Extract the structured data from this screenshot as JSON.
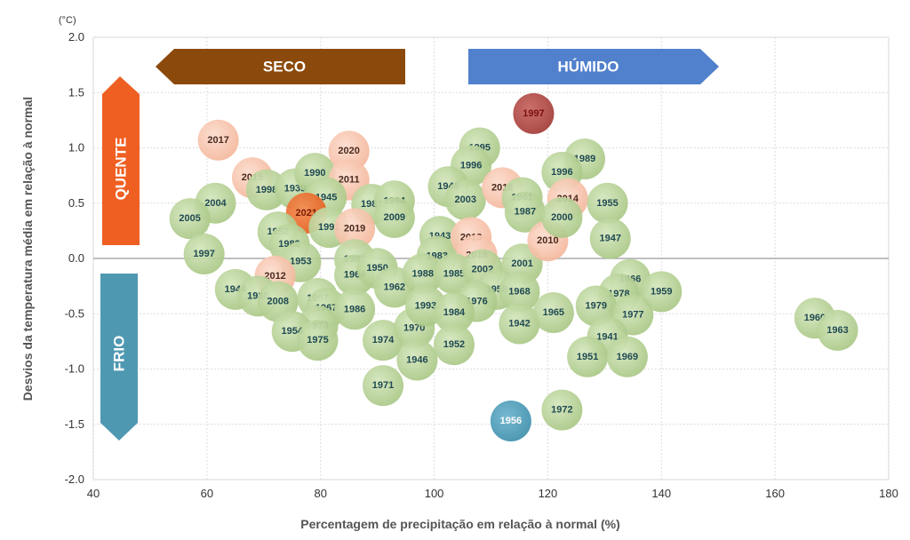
{
  "chart_data": {
    "type": "scatter",
    "title": "",
    "xlabel": "Percentagem de precipitação em relação à normal (%)",
    "ylabel": "Desvios da temperatura média em relação à normal",
    "yunit": "(°C)",
    "xlim": [
      40,
      180
    ],
    "ylim": [
      -2.0,
      2.0
    ],
    "x_ticks": [
      40,
      60,
      80,
      100,
      120,
      140,
      160,
      180
    ],
    "y_ticks": [
      "2.0",
      "1.5",
      "1.0",
      "0.5",
      "0.0",
      "-0.5",
      "-1.0",
      "-1.5",
      "-2.0"
    ],
    "grid": true,
    "colors": {
      "green": "#b5cf91",
      "pink": "#f7c2aa",
      "orange": "#ee6e2b",
      "red": "#b3443f",
      "blue": "#4b9cb8",
      "seco_arrow": "#8b4a0c",
      "humido_arrow": "#5180cc",
      "quente_arrow": "#ef5f22",
      "frio_arrow": "#4f98b2"
    },
    "quadrants": {
      "seco": "SECO",
      "humido": "HÚMIDO",
      "quente": "QUENTE",
      "frio": "FRIO"
    },
    "points": [
      {
        "year": "2017",
        "x": 62,
        "y": 1.07,
        "color": "pink"
      },
      {
        "year": "2015",
        "x": 68,
        "y": 0.73,
        "color": "pink"
      },
      {
        "year": "1998",
        "x": 70.5,
        "y": 0.62,
        "color": "green"
      },
      {
        "year": "2004",
        "x": 61.5,
        "y": 0.5,
        "color": "green"
      },
      {
        "year": "2005",
        "x": 57,
        "y": 0.36,
        "color": "green"
      },
      {
        "year": "1997",
        "x": 59.5,
        "y": 0.04,
        "color": "green"
      },
      {
        "year": "1939",
        "x": 75.5,
        "y": 0.63,
        "color": "green"
      },
      {
        "year": "1990",
        "x": 79,
        "y": 0.77,
        "color": "green"
      },
      {
        "year": "2020",
        "x": 85,
        "y": 0.97,
        "color": "pink"
      },
      {
        "year": "2011",
        "x": 85,
        "y": 0.71,
        "color": "pink"
      },
      {
        "year": "1945",
        "x": 81,
        "y": 0.55,
        "color": "green"
      },
      {
        "year": "2021",
        "x": 77.5,
        "y": 0.41,
        "color": "orange"
      },
      {
        "year": "1981",
        "x": 89,
        "y": 0.49,
        "color": "green"
      },
      {
        "year": "1994",
        "x": 93,
        "y": 0.52,
        "color": "green"
      },
      {
        "year": "2009",
        "x": 93,
        "y": 0.37,
        "color": "green"
      },
      {
        "year": "1992",
        "x": 72.5,
        "y": 0.24,
        "color": "green"
      },
      {
        "year": "1982",
        "x": 74.5,
        "y": 0.13,
        "color": "green"
      },
      {
        "year": "1991",
        "x": 81.5,
        "y": 0.28,
        "color": "green"
      },
      {
        "year": "2019",
        "x": 86,
        "y": 0.27,
        "color": "pink"
      },
      {
        "year": "1953",
        "x": 76.5,
        "y": -0.03,
        "color": "green"
      },
      {
        "year": "2012",
        "x": 72,
        "y": -0.16,
        "color": "pink"
      },
      {
        "year": "1999",
        "x": 86,
        "y": -0.01,
        "color": "green"
      },
      {
        "year": "1964",
        "x": 86,
        "y": -0.15,
        "color": "green"
      },
      {
        "year": "1950",
        "x": 90,
        "y": -0.09,
        "color": "green"
      },
      {
        "year": "1962",
        "x": 93,
        "y": -0.26,
        "color": "green"
      },
      {
        "year": "1944",
        "x": 65,
        "y": -0.28,
        "color": "green"
      },
      {
        "year": "1980",
        "x": 69,
        "y": -0.34,
        "color": "green"
      },
      {
        "year": "2008",
        "x": 72.5,
        "y": -0.39,
        "color": "green"
      },
      {
        "year": "1957",
        "x": 79.5,
        "y": -0.36,
        "color": "green"
      },
      {
        "year": "1967",
        "x": 81,
        "y": -0.45,
        "color": "green"
      },
      {
        "year": "1986",
        "x": 86,
        "y": -0.46,
        "color": "green"
      },
      {
        "year": "1973",
        "x": 79.5,
        "y": -0.61,
        "color": "green"
      },
      {
        "year": "1954",
        "x": 75,
        "y": -0.66,
        "color": "green"
      },
      {
        "year": "1975",
        "x": 79.5,
        "y": -0.74,
        "color": "green"
      },
      {
        "year": "1974",
        "x": 91,
        "y": -0.74,
        "color": "green"
      },
      {
        "year": "1970",
        "x": 96.5,
        "y": -0.63,
        "color": "green"
      },
      {
        "year": "1946",
        "x": 97,
        "y": -0.92,
        "color": "green"
      },
      {
        "year": "1971",
        "x": 91,
        "y": -1.15,
        "color": "green"
      },
      {
        "year": "1995",
        "x": 108,
        "y": 1.0,
        "color": "green"
      },
      {
        "year": "1996",
        "x": 106.5,
        "y": 0.84,
        "color": "green"
      },
      {
        "year": "1948",
        "x": 102.5,
        "y": 0.65,
        "color": "green"
      },
      {
        "year": "2003",
        "x": 105.5,
        "y": 0.53,
        "color": "green"
      },
      {
        "year": "2016",
        "x": 112,
        "y": 0.64,
        "color": "pink"
      },
      {
        "year": "1961",
        "x": 115.5,
        "y": 0.55,
        "color": "green"
      },
      {
        "year": "1987",
        "x": 116,
        "y": 0.42,
        "color": "green"
      },
      {
        "year": "1943",
        "x": 101,
        "y": 0.2,
        "color": "green"
      },
      {
        "year": "1983",
        "x": 100.5,
        "y": 0.02,
        "color": "green"
      },
      {
        "year": "2013",
        "x": 106.5,
        "y": 0.19,
        "color": "pink"
      },
      {
        "year": "2018",
        "x": 107.5,
        "y": 0.03,
        "color": "pink"
      },
      {
        "year": "1988",
        "x": 98,
        "y": -0.14,
        "color": "green"
      },
      {
        "year": "1985",
        "x": 103.5,
        "y": -0.14,
        "color": "green"
      },
      {
        "year": "2002",
        "x": 108.5,
        "y": -0.1,
        "color": "green"
      },
      {
        "year": "2001",
        "x": 115.5,
        "y": -0.05,
        "color": "green"
      },
      {
        "year": "2010",
        "x": 120,
        "y": 0.16,
        "color": "pink"
      },
      {
        "year": "1958",
        "x": 111,
        "y": -0.28,
        "color": "green"
      },
      {
        "year": "1968",
        "x": 115,
        "y": -0.3,
        "color": "green"
      },
      {
        "year": "1976",
        "x": 107.5,
        "y": -0.39,
        "color": "green"
      },
      {
        "year": "1993",
        "x": 98.5,
        "y": -0.43,
        "color": "green"
      },
      {
        "year": "1984",
        "x": 103.5,
        "y": -0.49,
        "color": "green"
      },
      {
        "year": "1952",
        "x": 103.5,
        "y": -0.78,
        "color": "green"
      },
      {
        "year": "1942",
        "x": 115,
        "y": -0.59,
        "color": "green"
      },
      {
        "year": "1965",
        "x": 121,
        "y": -0.49,
        "color": "green"
      },
      {
        "year": "1997",
        "x": 117.5,
        "y": 1.31,
        "color": "red"
      },
      {
        "year": "1989",
        "x": 126.5,
        "y": 0.9,
        "color": "green"
      },
      {
        "year": "1996",
        "x": 122.5,
        "y": 0.78,
        "color": "green"
      },
      {
        "year": "2014",
        "x": 123.5,
        "y": 0.54,
        "color": "pink"
      },
      {
        "year": "2000",
        "x": 122.5,
        "y": 0.37,
        "color": "green"
      },
      {
        "year": "1955",
        "x": 130.5,
        "y": 0.5,
        "color": "green"
      },
      {
        "year": "1947",
        "x": 131,
        "y": 0.18,
        "color": "green"
      },
      {
        "year": "1966",
        "x": 134.5,
        "y": -0.19,
        "color": "green"
      },
      {
        "year": "1978",
        "x": 132.5,
        "y": -0.32,
        "color": "green"
      },
      {
        "year": "1959",
        "x": 140,
        "y": -0.3,
        "color": "green"
      },
      {
        "year": "1979",
        "x": 128.5,
        "y": -0.43,
        "color": "green"
      },
      {
        "year": "1977",
        "x": 135,
        "y": -0.51,
        "color": "green"
      },
      {
        "year": "1941",
        "x": 130.5,
        "y": -0.71,
        "color": "green"
      },
      {
        "year": "1951",
        "x": 127,
        "y": -0.89,
        "color": "green"
      },
      {
        "year": "1969",
        "x": 134,
        "y": -0.89,
        "color": "green"
      },
      {
        "year": "1956",
        "x": 113.5,
        "y": -1.47,
        "color": "blue"
      },
      {
        "year": "1972",
        "x": 122.5,
        "y": -1.37,
        "color": "green"
      },
      {
        "year": "1960",
        "x": 167,
        "y": -0.54,
        "color": "green"
      },
      {
        "year": "1963",
        "x": 171,
        "y": -0.65,
        "color": "green"
      }
    ]
  }
}
